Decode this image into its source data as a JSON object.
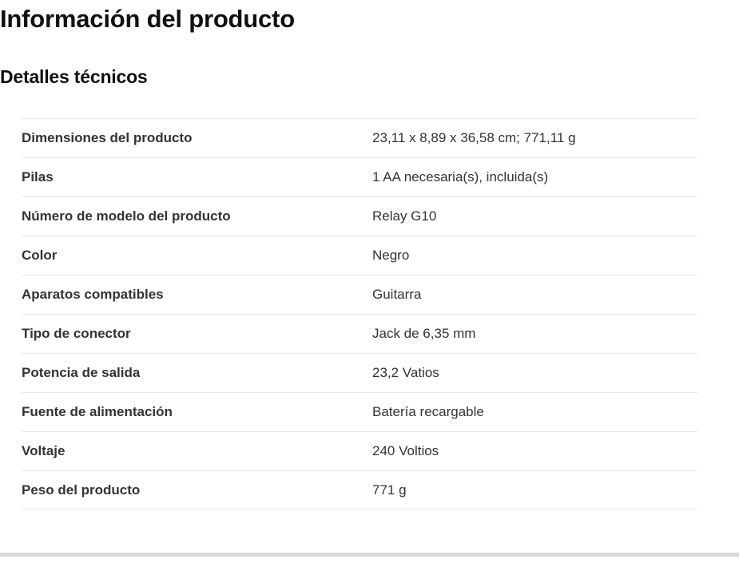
{
  "page": {
    "title": "Información del producto",
    "section_title": "Detalles técnicos"
  },
  "details_table": {
    "rows": [
      {
        "label": "Dimensiones del producto",
        "value": "23,11 x 8,89 x 36,58 cm; 771,11 g"
      },
      {
        "label": "Pilas",
        "value": "1 AA necesaria(s), incluida(s)"
      },
      {
        "label": "Número de modelo del producto",
        "value": "Relay G10"
      },
      {
        "label": "Color",
        "value": "Negro"
      },
      {
        "label": "Aparatos compatibles",
        "value": "Guitarra"
      },
      {
        "label": "Tipo de conector",
        "value": "Jack de 6,35 mm"
      },
      {
        "label": "Potencia de salida",
        "value": "23,2 Vatios"
      },
      {
        "label": "Fuente de alimentación",
        "value": "Batería recargable"
      },
      {
        "label": "Voltaje",
        "value": "240 Voltios"
      },
      {
        "label": "Peso del producto",
        "value": "771 g"
      }
    ]
  },
  "colors": {
    "heading_text": "#0f1111",
    "label_text": "#333333",
    "value_text": "#333333",
    "row_border": "#e7e7e7",
    "bottom_divider": "#d5d9d9"
  }
}
